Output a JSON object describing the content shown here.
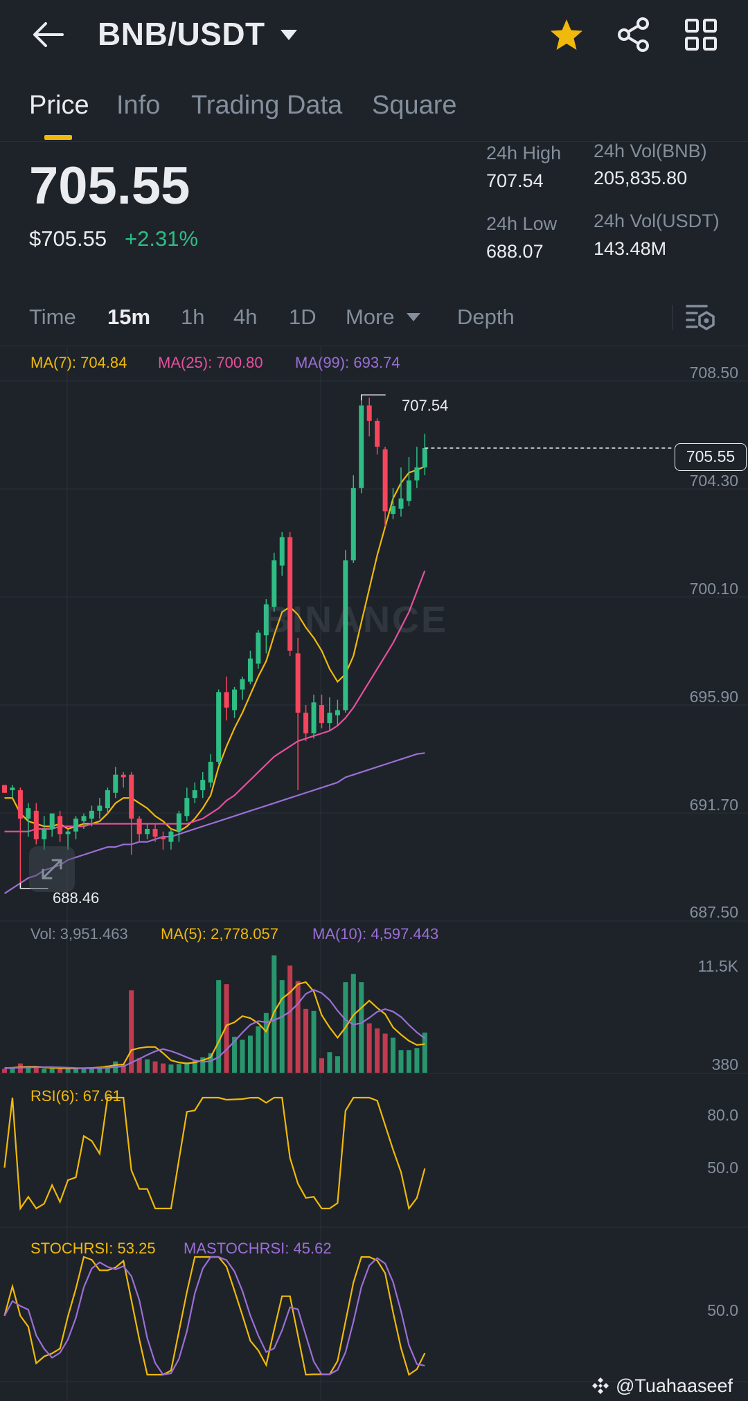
{
  "header": {
    "pair": "BNB/USDT",
    "icons": [
      "back-arrow-icon",
      "caret-down-icon",
      "star-icon",
      "share-icon",
      "grid-icon"
    ],
    "star_color": "#f0b90b"
  },
  "tabs": [
    "Price",
    "Info",
    "Trading Data",
    "Square"
  ],
  "price": {
    "last": "705.55",
    "usd": "$705.55",
    "change": "+2.31%"
  },
  "stats": {
    "high_label": "24h High",
    "high_value": "707.54",
    "low_label": "24h Low",
    "low_value": "688.07",
    "vol_base_label": "24h Vol(BNB)",
    "vol_base_value": "205,835.80",
    "vol_quote_label": "24h Vol(USDT)",
    "vol_quote_value": "143.48M"
  },
  "intervals": {
    "time": "Time",
    "m15": "15m",
    "h1": "1h",
    "h4": "4h",
    "d1": "1D",
    "more": "More",
    "depth": "Depth"
  },
  "ma": {
    "ma7": "MA(7): 704.84",
    "ma25": "MA(25): 700.80",
    "ma99": "MA(99): 693.74"
  },
  "price_axis": [
    "708.50",
    "704.30",
    "700.10",
    "695.90",
    "691.70",
    "687.50"
  ],
  "chart_marks": {
    "high_label": "707.54",
    "low_label": "688.46",
    "current_tag": "705.55",
    "watermark": "BINANCE"
  },
  "volume": {
    "vol": "Vol: 3,951.463",
    "ma5": "MA(5): 2,778.057",
    "ma10": "MA(10): 4,597.443",
    "axis_top": "11.5K",
    "axis_bottom": "380"
  },
  "rsi": {
    "label": "RSI(6): 67.61",
    "axis_top": "80.0",
    "axis_mid": "50.0"
  },
  "stochrsi": {
    "label": "STOCHRSI: 53.25",
    "ma_label": "MASTOCHRSI: 45.62",
    "axis_mid": "50.0"
  },
  "footer": {
    "handle": "@Tuahaaseef"
  },
  "colors": {
    "up": "#2ebd85",
    "down": "#f6465d",
    "ma7": "#f0b90b",
    "ma25": "#e84fa0",
    "ma99": "#9b6fd6",
    "accent": "#f0b90b"
  },
  "chart_data": {
    "type": "candlestick",
    "x_interval": "15m",
    "ylim": [
      687.5,
      708.5
    ],
    "candles": [
      [
        692.5,
        692.5,
        692.2,
        692.2
      ],
      [
        692.3,
        692.5,
        692.0,
        692.4
      ],
      [
        692.3,
        692.4,
        688.5,
        691.2
      ],
      [
        691.2,
        691.8,
        690.5,
        691.6
      ],
      [
        691.5,
        691.8,
        690.2,
        690.4
      ],
      [
        690.4,
        691.3,
        690.0,
        690.8
      ],
      [
        690.8,
        691.4,
        690.5,
        691.4
      ],
      [
        691.3,
        691.5,
        690.3,
        690.6
      ],
      [
        690.6,
        690.8,
        690.0,
        690.7
      ],
      [
        690.7,
        691.3,
        690.4,
        691.2
      ],
      [
        691.1,
        691.4,
        690.8,
        691.3
      ],
      [
        691.2,
        691.7,
        690.9,
        691.5
      ],
      [
        691.5,
        692.0,
        691.2,
        691.7
      ],
      [
        691.6,
        692.4,
        691.4,
        692.3
      ],
      [
        692.2,
        693.2,
        692.0,
        692.9
      ],
      [
        692.9,
        693.0,
        692.4,
        692.8
      ],
      [
        692.9,
        693.0,
        689.8,
        691.2
      ],
      [
        691.2,
        691.3,
        690.3,
        690.6
      ],
      [
        690.6,
        691.0,
        690.4,
        690.8
      ],
      [
        690.8,
        691.0,
        690.3,
        690.5
      ],
      [
        690.5,
        690.7,
        690.0,
        690.4
      ],
      [
        690.3,
        690.8,
        690.0,
        690.7
      ],
      [
        690.7,
        691.5,
        690.3,
        691.4
      ],
      [
        691.3,
        692.4,
        691.1,
        692.0
      ],
      [
        692.0,
        692.6,
        691.8,
        692.3
      ],
      [
        692.3,
        693.0,
        692.0,
        692.7
      ],
      [
        692.6,
        693.7,
        692.4,
        693.4
      ],
      [
        693.4,
        696.2,
        693.3,
        696.1
      ],
      [
        696.1,
        696.7,
        695.0,
        695.5
      ],
      [
        695.4,
        696.3,
        695.1,
        696.2
      ],
      [
        696.2,
        696.7,
        695.8,
        696.6
      ],
      [
        696.5,
        697.7,
        696.4,
        697.4
      ],
      [
        697.2,
        698.5,
        697.0,
        698.4
      ],
      [
        698.3,
        699.7,
        697.6,
        699.5
      ],
      [
        699.4,
        701.5,
        699.2,
        701.2
      ],
      [
        701.0,
        702.3,
        700.6,
        702.1
      ],
      [
        702.1,
        702.3,
        697.5,
        697.7
      ],
      [
        697.6,
        698.2,
        692.3,
        695.3
      ],
      [
        695.3,
        695.6,
        694.2,
        694.5
      ],
      [
        694.5,
        696.0,
        694.3,
        695.7
      ],
      [
        695.6,
        696.0,
        694.7,
        694.9
      ],
      [
        694.9,
        695.9,
        694.6,
        695.3
      ],
      [
        695.2,
        695.8,
        694.8,
        695.4
      ],
      [
        695.4,
        701.6,
        695.3,
        701.2
      ],
      [
        701.2,
        704.5,
        701.1,
        704.0
      ],
      [
        704.0,
        707.5,
        703.8,
        707.2
      ],
      [
        707.2,
        707.5,
        706.0,
        706.6
      ],
      [
        706.6,
        706.7,
        705.3,
        705.6
      ],
      [
        705.5,
        705.6,
        702.5,
        703.1
      ],
      [
        703.0,
        704.0,
        702.8,
        703.3
      ],
      [
        703.2,
        704.8,
        702.9,
        703.6
      ],
      [
        703.5,
        705.2,
        703.3,
        704.3
      ],
      [
        704.3,
        705.6,
        704.0,
        704.8
      ],
      [
        704.8,
        706.1,
        704.5,
        705.55
      ]
    ],
    "ma_series": [
      {
        "name": "MA(7)",
        "values": [
          692.0,
          692.0,
          691.4,
          691.1,
          691.0,
          690.9,
          690.9,
          691.0,
          690.8,
          690.9,
          691.0,
          691.0,
          691.1,
          691.4,
          691.8,
          692.0,
          692.0,
          691.8,
          691.6,
          691.3,
          691.1,
          690.8,
          690.7,
          690.9,
          691.2,
          691.6,
          692.1,
          693.2,
          694.0,
          694.7,
          695.3,
          696.0,
          696.7,
          697.3,
          698.3,
          699.2,
          699.4,
          699.1,
          698.6,
          698.2,
          697.7,
          697.0,
          696.5,
          696.8,
          697.5,
          698.8,
          700.1,
          701.4,
          702.5,
          703.6,
          704.2,
          704.6,
          704.7,
          704.84
        ]
      },
      {
        "name": "MA(25)",
        "values": [
          690.7,
          690.7,
          690.7,
          690.7,
          690.8,
          690.8,
          690.8,
          690.9,
          690.9,
          690.9,
          690.9,
          691.0,
          691.0,
          691.0,
          691.0,
          691.0,
          691.0,
          691.0,
          691.0,
          691.0,
          691.0,
          691.0,
          691.0,
          691.0,
          691.1,
          691.2,
          691.4,
          691.6,
          691.9,
          692.1,
          692.4,
          692.7,
          693.0,
          693.3,
          693.6,
          693.8,
          694.0,
          694.2,
          694.3,
          694.4,
          694.5,
          694.6,
          694.8,
          695.1,
          695.5,
          696.0,
          696.5,
          697.0,
          697.5,
          698.0,
          698.6,
          699.2,
          700.0,
          700.8
        ]
      },
      {
        "name": "MA(99)",
        "values": [
          688.3,
          688.5,
          688.7,
          688.9,
          689.0,
          689.2,
          689.3,
          689.4,
          689.6,
          689.7,
          689.8,
          689.9,
          690.0,
          690.1,
          690.1,
          690.2,
          690.2,
          690.3,
          690.3,
          690.4,
          690.5,
          690.5,
          690.6,
          690.7,
          690.8,
          690.9,
          691.0,
          691.1,
          691.2,
          691.3,
          691.4,
          691.5,
          691.6,
          691.7,
          691.8,
          691.9,
          692.0,
          692.1,
          692.2,
          692.3,
          692.4,
          692.5,
          692.6,
          692.8,
          692.9,
          693.0,
          693.1,
          693.2,
          693.3,
          693.4,
          693.5,
          693.6,
          693.7,
          693.74
        ]
      }
    ],
    "volume": [
      380,
      420,
      900,
      520,
      480,
      400,
      430,
      380,
      400,
      420,
      460,
      520,
      560,
      700,
      1100,
      800,
      8000,
      1400,
      1300,
      1100,
      900,
      800,
      850,
      1000,
      1200,
      1500,
      1900,
      9000,
      8600,
      3500,
      3200,
      3600,
      4500,
      5800,
      11400,
      9000,
      10400,
      8900,
      6200,
      6000,
      1400,
      2000,
      1600,
      8800,
      9600,
      8800,
      4800,
      4300,
      3800,
      3400,
      2200,
      2200,
      2400,
      3900
    ],
    "volume_ma5": [
      450,
      480,
      560,
      580,
      590,
      520,
      490,
      440,
      420,
      420,
      440,
      460,
      520,
      600,
      750,
      800,
      2200,
      2400,
      2500,
      2500,
      1900,
      1200,
      1000,
      900,
      1000,
      1200,
      1500,
      3000,
      4600,
      4900,
      5500,
      5300,
      4800,
      4000,
      5900,
      7200,
      7800,
      8600,
      8800,
      7900,
      5600,
      4400,
      3400,
      4400,
      5600,
      6300,
      7000,
      6300,
      5700,
      4400,
      3700,
      3100,
      2700,
      2778
    ]
  }
}
